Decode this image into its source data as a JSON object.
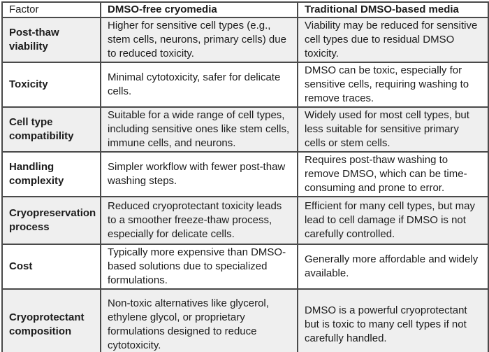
{
  "table": {
    "columns": [
      "Factor",
      "DMSO-free cryomedia",
      "Traditional DMSO-based media"
    ],
    "rows": [
      {
        "factor": "Post-thaw viability",
        "dmso_free": "Higher for sensitive cell types (e.g., stem cells, neurons, primary cells) due to reduced toxicity.",
        "traditional": "Viability may be reduced for sensitive cell types due to residual DMSO toxicity."
      },
      {
        "factor": "Toxicity",
        "dmso_free": "Minimal cytotoxicity, safer for delicate cells.",
        "traditional": "DMSO can be toxic, especially for sensitive cells, requiring washing to remove traces."
      },
      {
        "factor": "Cell type compatibility",
        "dmso_free": "Suitable for a wide range of cell types, including sensitive ones like stem cells, immune cells, and neurons.",
        "traditional": "Widely used for most cell types, but less suitable for sensitive primary cells or stem cells."
      },
      {
        "factor": "Handling complexity",
        "dmso_free": "Simpler workflow with fewer post-thaw washing steps.",
        "traditional": "Requires post-thaw washing to remove DMSO, which can be time-consuming and prone to error."
      },
      {
        "factor": "Cryopreservation process",
        "dmso_free": "Reduced cryoprotectant toxicity leads to a smoother freeze-thaw process, especially for delicate cells.",
        "traditional": "Efficient for many cell types, but may lead to cell damage if DMSO is not carefully controlled."
      },
      {
        "factor": "Cost",
        "dmso_free": "Typically more expensive than DMSO-based solutions due to specialized formulations.",
        "traditional": "Generally more affordable and widely available."
      },
      {
        "factor": "Cryoprotectant composition",
        "dmso_free": "Non-toxic alternatives like glycerol, ethylene glycol, or proprietary formulations designed to reduce cytotoxicity.",
        "traditional": "DMSO is a powerful cryoprotectant but is toxic to many cell types if not carefully handled."
      }
    ]
  },
  "colors": {
    "border": "#4a4a4a",
    "row_alt_background": "#efefef",
    "row_background": "#ffffff",
    "text": "#1c1c1c"
  }
}
